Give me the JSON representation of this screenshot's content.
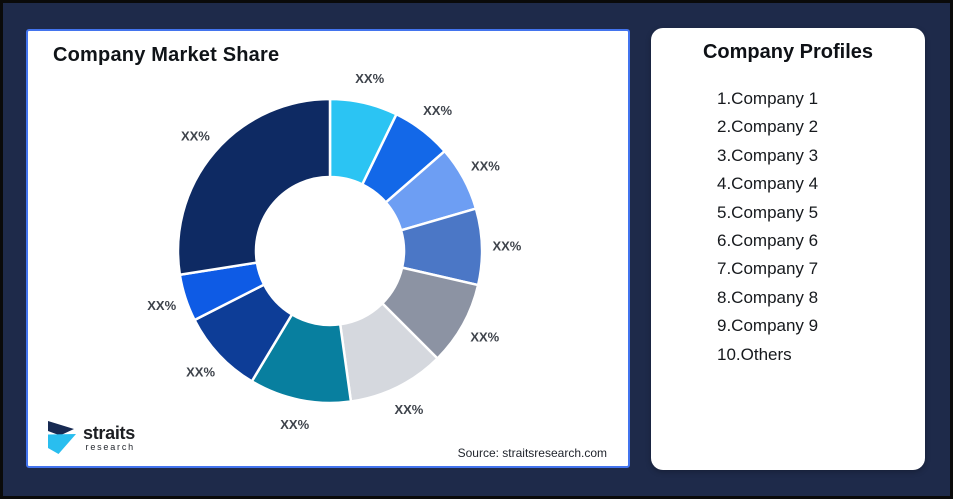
{
  "window": {
    "background_color": "#1E2A4A",
    "outer_border_color": "#0A0A0A"
  },
  "market_share_panel": {
    "title": "Company Market Share",
    "panel_border_color": "#4374EE",
    "source_note": "Source: straitsresearch.com",
    "logo": {
      "brand": "straits",
      "brand_sub": "research",
      "mark_navy": "#172A52",
      "mark_cyan": "#29BEEF"
    }
  },
  "profiles_panel": {
    "title": "Company Profiles",
    "items": [
      "1.Company 1",
      "2.Company 2",
      "3.Company 3",
      "4.Company 4",
      "5.Company 5",
      "6.Company 6",
      "7.Company 7",
      "8.Company 8",
      "9.Company 9",
      "10.Others"
    ]
  },
  "chart_data": {
    "type": "pie",
    "subtype": "donut",
    "title": "Company Market Share",
    "start_angle_deg": 0,
    "direction": "clockwise",
    "inner_radius_ratio": 0.49,
    "values": [
      7.2,
      6.4,
      6.9,
      8.1,
      8.9,
      10.3,
      10.8,
      8.9,
      5.0,
      27.5
    ],
    "values_note": "arc angles estimated from pixels; on-chart labels are placeholders",
    "value_labels": [
      "XX%",
      "XX%",
      "XX%",
      "XX%",
      "XX%",
      "XX%",
      "XX%",
      "XX%",
      "XX%",
      "XX%"
    ],
    "colors": [
      "#2BC4F3",
      "#1368E8",
      "#6D9EF3",
      "#4B77C6",
      "#8C93A3",
      "#D5D8DE",
      "#087F9F",
      "#0D3D97",
      "#0E5BE5",
      "#0E2A63"
    ],
    "label_color": "#3E434B",
    "legend": "none",
    "source": "Source: straitsresearch.com"
  }
}
